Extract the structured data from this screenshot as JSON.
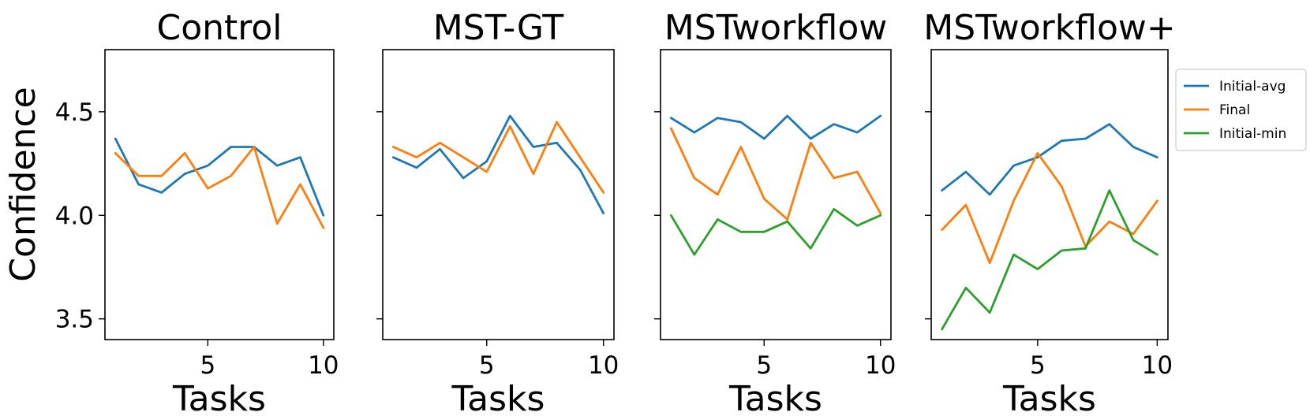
{
  "chart_data": {
    "type": "line",
    "ylabel": "Confidence",
    "xlabel": "Tasks",
    "ylim": [
      3.4,
      4.8
    ],
    "xlim": [
      0.55,
      10.45
    ],
    "yticks": [
      3.5,
      4.0,
      4.5
    ],
    "ytick_labels": [
      "3.5",
      "4.0",
      "4.5"
    ],
    "xticks": [
      5,
      10
    ],
    "xtick_labels": [
      "5",
      "10"
    ],
    "grid": false,
    "legend_placement": "outside-right-top",
    "series_colors": {
      "Initial-avg": "#1f77b4",
      "Final": "#ff7f0e",
      "Initial-min": "#2ca02c"
    },
    "legend": [
      "Initial-avg",
      "Final",
      "Initial-min"
    ],
    "panels": [
      {
        "title": "Control",
        "x": [
          1,
          2,
          3,
          4,
          5,
          6,
          7,
          8,
          9,
          10
        ],
        "series": [
          {
            "name": "Initial-avg",
            "values": [
              4.37,
              4.15,
              4.11,
              4.2,
              4.24,
              4.33,
              4.33,
              4.24,
              4.28,
              4.0
            ]
          },
          {
            "name": "Final",
            "values": [
              4.3,
              4.19,
              4.19,
              4.3,
              4.13,
              4.19,
              4.33,
              3.96,
              4.15,
              3.94
            ]
          }
        ]
      },
      {
        "title": "MST-GT",
        "x": [
          1,
          2,
          3,
          4,
          5,
          6,
          7,
          8,
          9,
          10
        ],
        "series": [
          {
            "name": "Initial-avg",
            "values": [
              4.28,
              4.23,
              4.32,
              4.18,
              4.26,
              4.48,
              4.33,
              4.35,
              4.22,
              4.01
            ]
          },
          {
            "name": "Final",
            "values": [
              4.33,
              4.28,
              4.35,
              4.28,
              4.21,
              4.43,
              4.2,
              4.45,
              4.28,
              4.11
            ]
          }
        ]
      },
      {
        "title": "MSTworkflow",
        "x": [
          1,
          2,
          3,
          4,
          5,
          6,
          7,
          8,
          9,
          10
        ],
        "series": [
          {
            "name": "Initial-avg",
            "values": [
              4.47,
              4.4,
              4.47,
              4.45,
              4.37,
              4.48,
              4.37,
              4.44,
              4.4,
              4.48
            ]
          },
          {
            "name": "Final",
            "values": [
              4.42,
              4.18,
              4.1,
              4.33,
              4.08,
              3.98,
              4.35,
              4.18,
              4.21,
              4.01
            ]
          },
          {
            "name": "Initial-min",
            "values": [
              4.0,
              3.81,
              3.98,
              3.92,
              3.92,
              3.97,
              3.84,
              4.03,
              3.95,
              4.0
            ]
          }
        ]
      },
      {
        "title": "MSTworkflow+",
        "x": [
          1,
          2,
          3,
          4,
          5,
          6,
          7,
          8,
          9,
          10
        ],
        "series": [
          {
            "name": "Initial-avg",
            "values": [
              4.12,
              4.21,
              4.1,
              4.24,
              4.28,
              4.36,
              4.37,
              4.44,
              4.33,
              4.28
            ]
          },
          {
            "name": "Final",
            "values": [
              3.93,
              4.05,
              3.77,
              4.07,
              4.3,
              4.14,
              3.85,
              3.97,
              3.91,
              4.07
            ]
          },
          {
            "name": "Initial-min",
            "values": [
              3.45,
              3.65,
              3.53,
              3.81,
              3.74,
              3.83,
              3.84,
              4.12,
              3.88,
              3.81
            ]
          }
        ]
      }
    ]
  }
}
